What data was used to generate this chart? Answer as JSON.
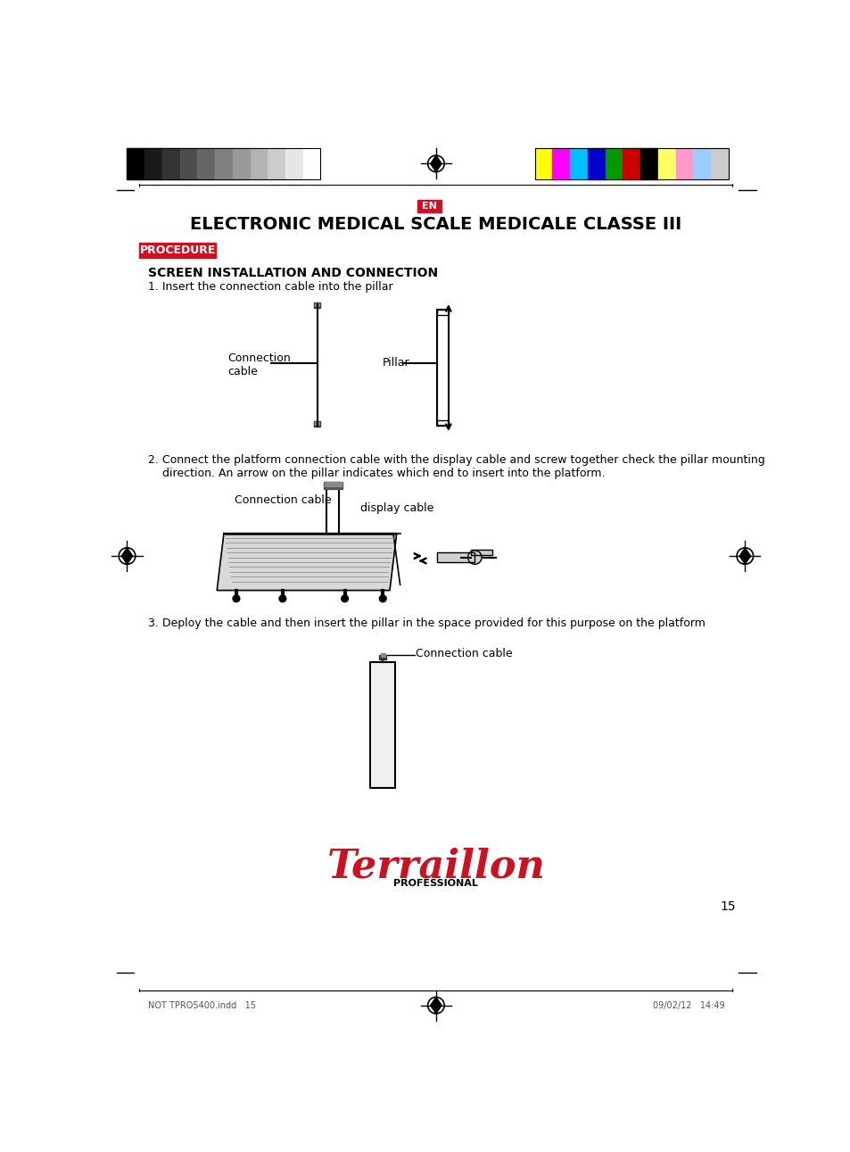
{
  "bg_color": "#ffffff",
  "title": "ELECTRONIC MEDICAL SCALE MEDICALE CLASSE III",
  "en_label": "EN",
  "en_bg": "#cc1122",
  "procedure_label": "PROCEDURE",
  "procedure_bg": "#cc1122",
  "section_title": "SCREEN INSTALLATION AND CONNECTION",
  "step1_text": "1. Insert the connection cable into the pillar",
  "step2_text": "2. Connect the platform connection cable with the display cable and screw together check the pillar mounting\n    direction. An arrow on the pillar indicates which end to insert into the platform.",
  "step3_text": "3. Deploy the cable and then insert the pillar in the space provided for this purpose on the platform",
  "label_connection_cable": "Connection\ncable",
  "label_pillar": "Pillar",
  "label_connection_cable2": "Connection cable",
  "label_display_cable": "display cable",
  "label_connection_cable3": "Connection cable",
  "footer_left": "NOT TPRO5400.indd   15",
  "footer_right": "09/02/12   14:49",
  "page_number": "15",
  "terraillon_color": "#cc1122",
  "bar_colors_gray": [
    "#000000",
    "#1a1a1a",
    "#333333",
    "#4d4d4d",
    "#666666",
    "#808080",
    "#999999",
    "#b3b3b3",
    "#cccccc",
    "#e6e6e6",
    "#ffffff"
  ],
  "bar_colors_cmyk": [
    "#ffff00",
    "#ff00ff",
    "#00bfff",
    "#0000cc",
    "#009900",
    "#cc0000",
    "#000000",
    "#ffff66",
    "#ff99cc",
    "#99ccff",
    "#cccccc"
  ]
}
